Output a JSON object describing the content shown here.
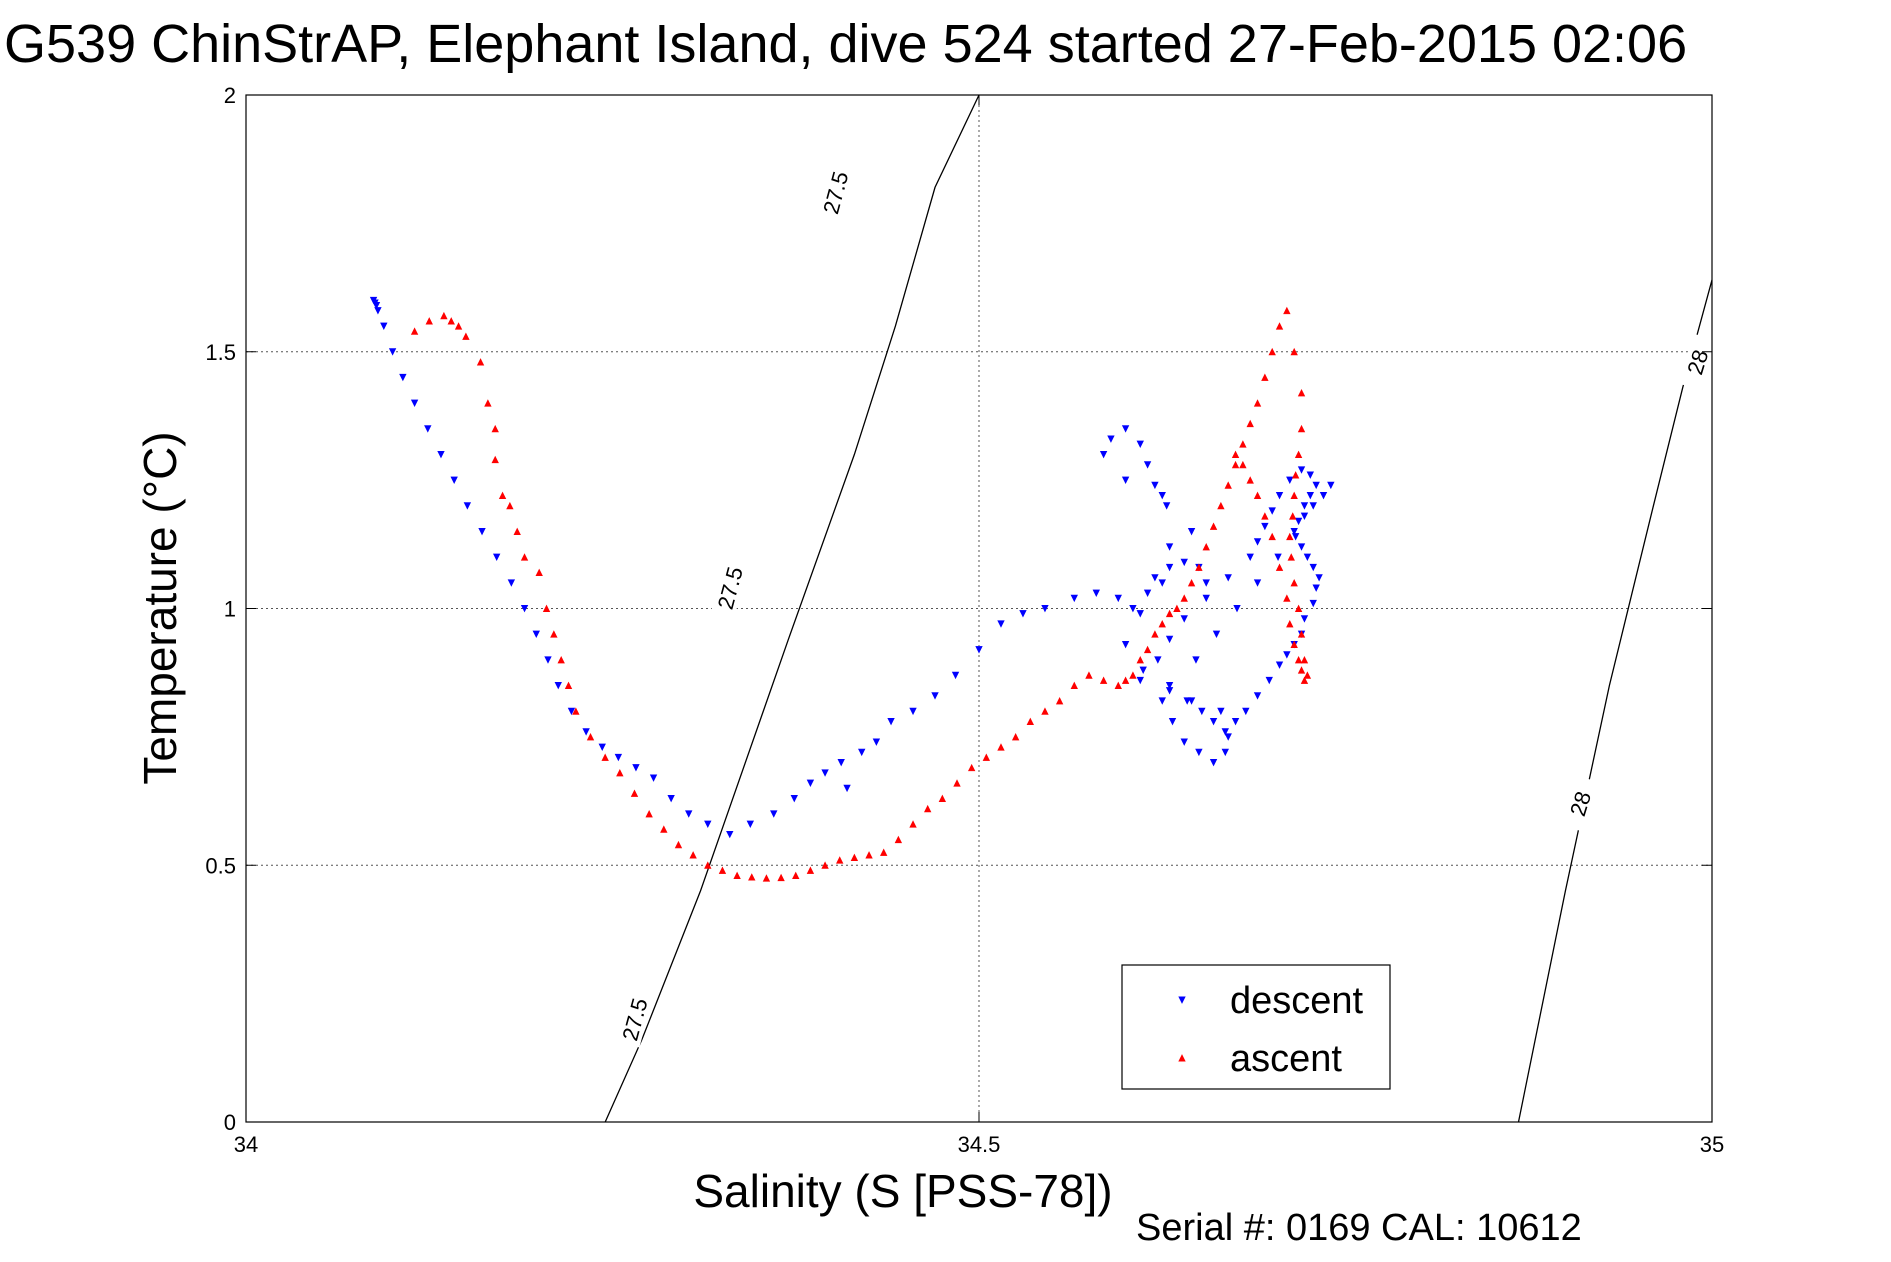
{
  "chart_data": {
    "type": "scatter",
    "title": "G539 ChinStrAP, Elephant Island, dive 524 started 27-Feb-2015 02:06",
    "xlabel": "Salinity (S [PSS-78])",
    "ylabel_main": "Temperature (",
    "ylabel_unit": "°C",
    "ylabel_close": ")",
    "footer": "Serial #: 0169 CAL: 10612",
    "xlim": [
      34,
      35
    ],
    "ylim": [
      0,
      2
    ],
    "xticks": [
      34,
      34.5,
      35
    ],
    "xtick_labels": [
      "34",
      "34.5",
      "35"
    ],
    "yticks": [
      0,
      0.5,
      1,
      1.5,
      2
    ],
    "ytick_labels": [
      "0",
      "0.5",
      "1",
      "1.5",
      "2"
    ],
    "grid": true,
    "legend_position": "bottom-right",
    "colors": {
      "descent": "#0000ff",
      "ascent": "#ff0000",
      "isopycnal": "#000000"
    },
    "isopycnals": [
      {
        "label": "27.5",
        "points": [
          [
            34.245,
            0
          ],
          [
            34.27,
            0.16
          ],
          [
            34.31,
            0.45
          ],
          [
            34.37,
            0.94
          ],
          [
            34.415,
            1.3
          ],
          [
            34.443,
            1.55
          ],
          [
            34.47,
            1.82
          ],
          [
            34.5,
            2.0
          ]
        ]
      },
      {
        "label": "28",
        "points": [
          [
            34.868,
            0
          ],
          [
            34.9,
            0.45
          ],
          [
            34.93,
            0.85
          ],
          [
            34.96,
            1.2
          ],
          [
            34.98,
            1.43
          ],
          [
            35.0,
            1.64
          ]
        ]
      }
    ],
    "isopycnal_labels": [
      {
        "text": "27.5",
        "x": 34.265,
        "y": 0.2,
        "rot": -75
      },
      {
        "text": "27.5",
        "x": 34.33,
        "y": 1.04,
        "rot": -75
      },
      {
        "text": "27.5",
        "x": 34.402,
        "y": 1.81,
        "rot": -75
      },
      {
        "text": "28",
        "x": 34.91,
        "y": 0.62,
        "rot": -73
      },
      {
        "text": "28",
        "x": 34.99,
        "y": 1.48,
        "rot": -73
      }
    ],
    "series": [
      {
        "name": "descent",
        "x": [
          34.087,
          34.088,
          34.089,
          34.09,
          34.094,
          34.1,
          34.107,
          34.115,
          34.124,
          34.133,
          34.142,
          34.151,
          34.161,
          34.171,
          34.181,
          34.19,
          34.198,
          34.206,
          34.213,
          34.222,
          34.232,
          34.243,
          34.254,
          34.266,
          34.278,
          34.29,
          34.302,
          34.315,
          34.33,
          34.344,
          34.36,
          34.374,
          34.385,
          34.395,
          34.406,
          34.42,
          34.43,
          34.41,
          34.44,
          34.455,
          34.47,
          34.484,
          34.5,
          34.515,
          34.53,
          34.545,
          34.565,
          34.58,
          34.595,
          34.605,
          34.615,
          34.62,
          34.63,
          34.64,
          34.65,
          34.655,
          34.645,
          34.625,
          34.6,
          34.585,
          34.59,
          34.6,
          34.61,
          34.615,
          34.62,
          34.628,
          34.63,
          34.625,
          34.61,
          34.6,
          34.612,
          34.63,
          34.642,
          34.652,
          34.66,
          34.668,
          34.675,
          34.682,
          34.69,
          34.698,
          34.705,
          34.71,
          34.715,
          34.72,
          34.722,
          34.728,
          34.73,
          34.732,
          34.728,
          34.724,
          34.72,
          34.716,
          34.718,
          34.722,
          34.726,
          34.73,
          34.726,
          34.72,
          34.712,
          34.705,
          34.7,
          34.695,
          34.69,
          34.685,
          34.67,
          34.655,
          34.64,
          34.63,
          34.622,
          34.61,
          34.63,
          34.645,
          34.665,
          34.67,
          34.668,
          34.66,
          34.65,
          34.64,
          34.632,
          34.625,
          34.648,
          34.662,
          34.676,
          34.69,
          34.704,
          34.715,
          34.722,
          34.728,
          34.735,
          34.74
        ],
        "y": [
          1.6,
          1.595,
          1.59,
          1.58,
          1.55,
          1.5,
          1.45,
          1.4,
          1.35,
          1.3,
          1.25,
          1.2,
          1.15,
          1.1,
          1.05,
          1.0,
          0.95,
          0.9,
          0.85,
          0.8,
          0.76,
          0.73,
          0.71,
          0.69,
          0.67,
          0.63,
          0.6,
          0.58,
          0.56,
          0.58,
          0.6,
          0.63,
          0.66,
          0.68,
          0.7,
          0.72,
          0.74,
          0.65,
          0.78,
          0.8,
          0.83,
          0.87,
          0.92,
          0.97,
          0.99,
          1.0,
          1.02,
          1.03,
          1.02,
          1.0,
          1.03,
          1.06,
          1.08,
          1.09,
          1.08,
          1.05,
          1.15,
          1.22,
          1.25,
          1.3,
          1.33,
          1.35,
          1.32,
          1.28,
          1.24,
          1.2,
          1.12,
          1.05,
          0.99,
          0.93,
          0.88,
          0.85,
          0.82,
          0.8,
          0.78,
          0.76,
          0.78,
          0.8,
          0.83,
          0.86,
          0.89,
          0.91,
          0.93,
          0.95,
          0.98,
          1.01,
          1.04,
          1.06,
          1.08,
          1.1,
          1.12,
          1.14,
          1.17,
          1.2,
          1.22,
          1.24,
          1.26,
          1.27,
          1.25,
          1.22,
          1.19,
          1.16,
          1.13,
          1.1,
          1.06,
          1.02,
          0.98,
          0.94,
          0.9,
          0.86,
          0.84,
          0.82,
          0.8,
          0.75,
          0.72,
          0.7,
          0.72,
          0.74,
          0.78,
          0.82,
          0.9,
          0.95,
          1.0,
          1.05,
          1.1,
          1.15,
          1.18,
          1.2,
          1.22,
          1.24
        ]
      },
      {
        "name": "ascent",
        "x": [
          34.115,
          34.125,
          34.135,
          34.14,
          34.145,
          34.15,
          34.16,
          34.165,
          34.17,
          34.17,
          34.175,
          34.18,
          34.185,
          34.19,
          34.2,
          34.205,
          34.21,
          34.215,
          34.22,
          34.225,
          34.235,
          34.245,
          34.255,
          34.265,
          34.275,
          34.285,
          34.295,
          34.305,
          34.315,
          34.325,
          34.335,
          34.345,
          34.355,
          34.365,
          34.375,
          34.385,
          34.395,
          34.405,
          34.415,
          34.425,
          34.435,
          34.445,
          34.455,
          34.465,
          34.475,
          34.485,
          34.495,
          34.505,
          34.515,
          34.525,
          34.535,
          34.545,
          34.555,
          34.565,
          34.575,
          34.585,
          34.595,
          34.6,
          34.605,
          34.61,
          34.615,
          34.62,
          34.625,
          34.63,
          34.635,
          34.64,
          34.645,
          34.65,
          34.655,
          34.66,
          34.665,
          34.67,
          34.675,
          34.68,
          34.685,
          34.69,
          34.695,
          34.7,
          34.705,
          34.71,
          34.715,
          34.72,
          34.72,
          34.718,
          34.716,
          34.715,
          34.714,
          34.712,
          34.713,
          34.715,
          34.718,
          34.72,
          34.722,
          34.724,
          34.722,
          34.72,
          34.718,
          34.715,
          34.712,
          34.71,
          34.705,
          34.7,
          34.695,
          34.69,
          34.685,
          34.68,
          34.675
        ],
        "y": [
          1.54,
          1.56,
          1.57,
          1.56,
          1.55,
          1.53,
          1.48,
          1.4,
          1.35,
          1.29,
          1.22,
          1.2,
          1.15,
          1.1,
          1.07,
          1.0,
          0.95,
          0.9,
          0.85,
          0.8,
          0.75,
          0.71,
          0.68,
          0.64,
          0.6,
          0.57,
          0.54,
          0.52,
          0.5,
          0.49,
          0.48,
          0.477,
          0.475,
          0.476,
          0.48,
          0.49,
          0.5,
          0.51,
          0.515,
          0.52,
          0.525,
          0.55,
          0.58,
          0.61,
          0.63,
          0.66,
          0.69,
          0.71,
          0.73,
          0.75,
          0.78,
          0.8,
          0.82,
          0.85,
          0.87,
          0.86,
          0.85,
          0.86,
          0.87,
          0.9,
          0.92,
          0.95,
          0.97,
          0.99,
          1.0,
          1.02,
          1.05,
          1.08,
          1.12,
          1.16,
          1.2,
          1.24,
          1.28,
          1.32,
          1.36,
          1.4,
          1.45,
          1.5,
          1.55,
          1.58,
          1.5,
          1.42,
          1.35,
          1.3,
          1.26,
          1.22,
          1.18,
          1.14,
          1.1,
          1.05,
          1.0,
          0.95,
          0.9,
          0.87,
          0.86,
          0.88,
          0.9,
          0.93,
          0.97,
          1.02,
          1.08,
          1.14,
          1.18,
          1.22,
          1.25,
          1.28,
          1.3
        ]
      }
    ]
  }
}
